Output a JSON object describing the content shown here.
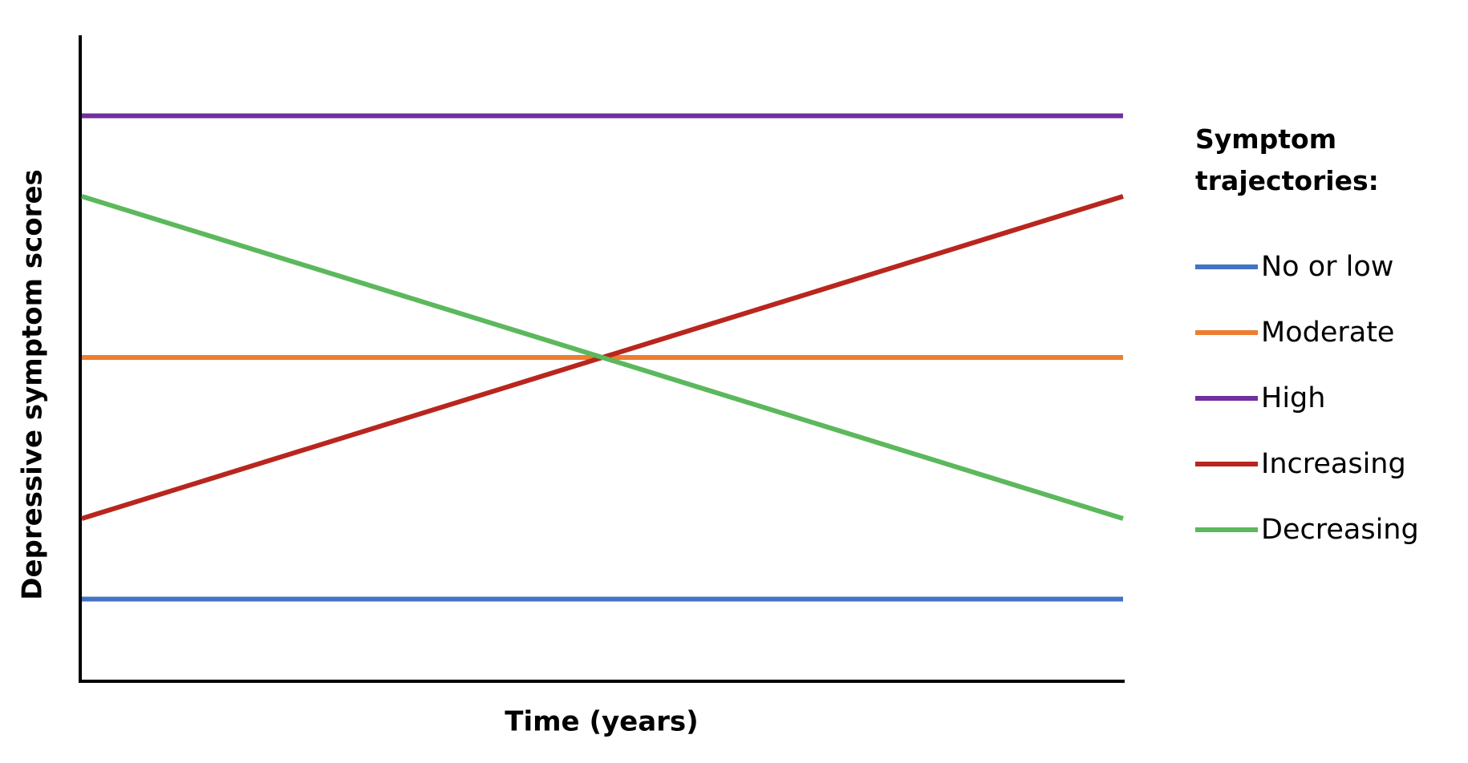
{
  "chart_data": {
    "type": "line",
    "xlabel": "Time (years)",
    "ylabel": "Depressive symptom scores",
    "legend_title": "Symptom trajectories:",
    "legend": "right",
    "x": [
      0,
      1
    ],
    "xlim": [
      0,
      1
    ],
    "ylim": [
      0,
      8
    ],
    "series": [
      {
        "name": "No or low",
        "color": "#4472c4",
        "values": [
          1,
          1
        ]
      },
      {
        "name": "Moderate",
        "color": "#ed7d31",
        "values": [
          4,
          4
        ]
      },
      {
        "name": "High",
        "color": "#7030a0",
        "values": [
          7,
          7
        ]
      },
      {
        "name": "Increasing",
        "color": "#b8261e",
        "values": [
          2,
          6
        ]
      },
      {
        "name": "Decreasing",
        "color": "#5cb85c",
        "values": [
          6,
          2
        ]
      }
    ]
  }
}
